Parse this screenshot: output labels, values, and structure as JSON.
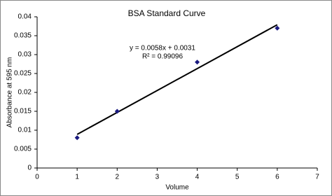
{
  "chart_data": {
    "type": "scatter",
    "title": "BSA Standard Curve",
    "x_label": "Volume",
    "y_label": "Absorbance at 595 nm",
    "annotations": [
      "y = 0.0058x + 0.0031",
      "R² = 0.99096"
    ],
    "series": [
      {
        "name": "BSA",
        "color": "#1a1a80",
        "x": [
          1,
          2,
          4,
          6
        ],
        "values": [
          0.008,
          0.015,
          0.028,
          0.037
        ]
      }
    ],
    "trendline": {
      "color": "#000000",
      "x": [
        1,
        6
      ],
      "values": [
        0.0089,
        0.0379
      ]
    },
    "xlim": [
      0,
      7
    ],
    "xticks": [
      0,
      1,
      2,
      3,
      4,
      5,
      6,
      7
    ],
    "ylim": [
      0,
      0.04
    ],
    "yticks": [
      0,
      0.005,
      0.01,
      0.015,
      0.02,
      0.025,
      0.03,
      0.035,
      0.04
    ],
    "grid": false
  }
}
